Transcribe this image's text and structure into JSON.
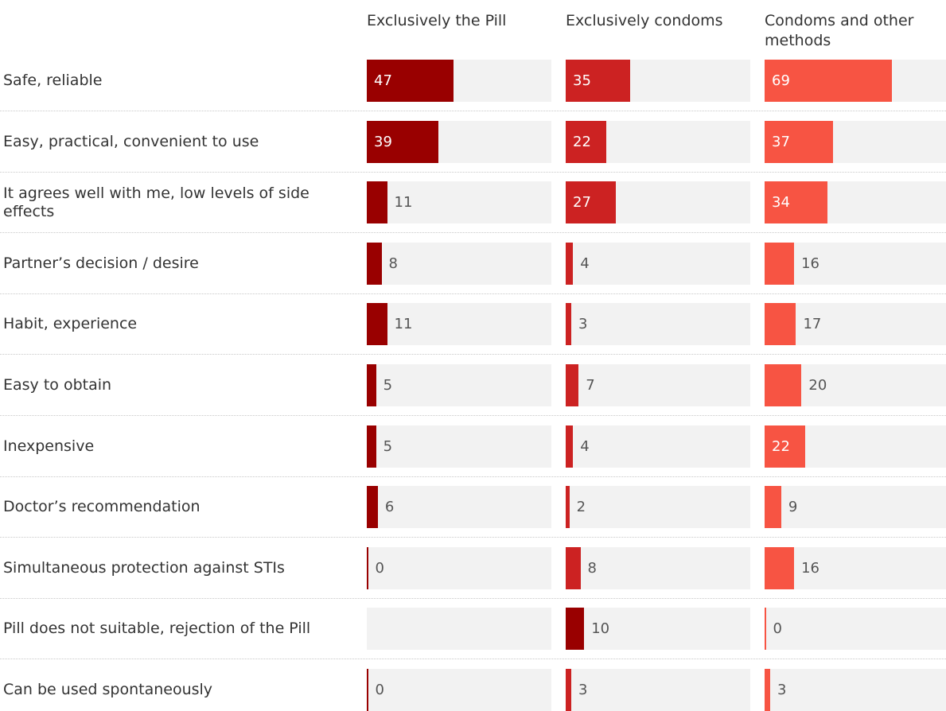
{
  "chart_data": {
    "type": "bar",
    "columns": [
      "Exclusively the Pill",
      "Exclusively condoms",
      "Condoms and other methods"
    ],
    "categories": [
      "Safe, reliable",
      "Easy, practical, convenient to use",
      "It agrees well with me, low levels of side effects",
      "Partner’s decision / desire",
      "Habit, experience",
      "Easy to obtain",
      "Inexpensive",
      "Doctor’s recommendation",
      "Simultaneous protection against STIs",
      "Pill does not suitable, rejection of the Pill",
      "Can be used spontaneously"
    ],
    "series": [
      {
        "name": "Exclusively the Pill",
        "color": "#990000",
        "values": [
          47,
          39,
          11,
          8,
          11,
          5,
          5,
          6,
          0,
          null,
          0
        ]
      },
      {
        "name": "Exclusively condoms",
        "color": "#cc2222",
        "values": [
          35,
          22,
          27,
          4,
          3,
          7,
          4,
          2,
          8,
          10,
          3
        ]
      },
      {
        "name": "Condoms and other methods",
        "color": "#f75443",
        "values": [
          69,
          37,
          34,
          16,
          17,
          20,
          22,
          9,
          16,
          0,
          3
        ]
      }
    ],
    "special_colors": {
      "Pill does not suitable, rejection of the Pill|Exclusively condoms": "#990000"
    },
    "xlim": [
      0,
      100
    ],
    "grid": false,
    "legend": "none"
  }
}
